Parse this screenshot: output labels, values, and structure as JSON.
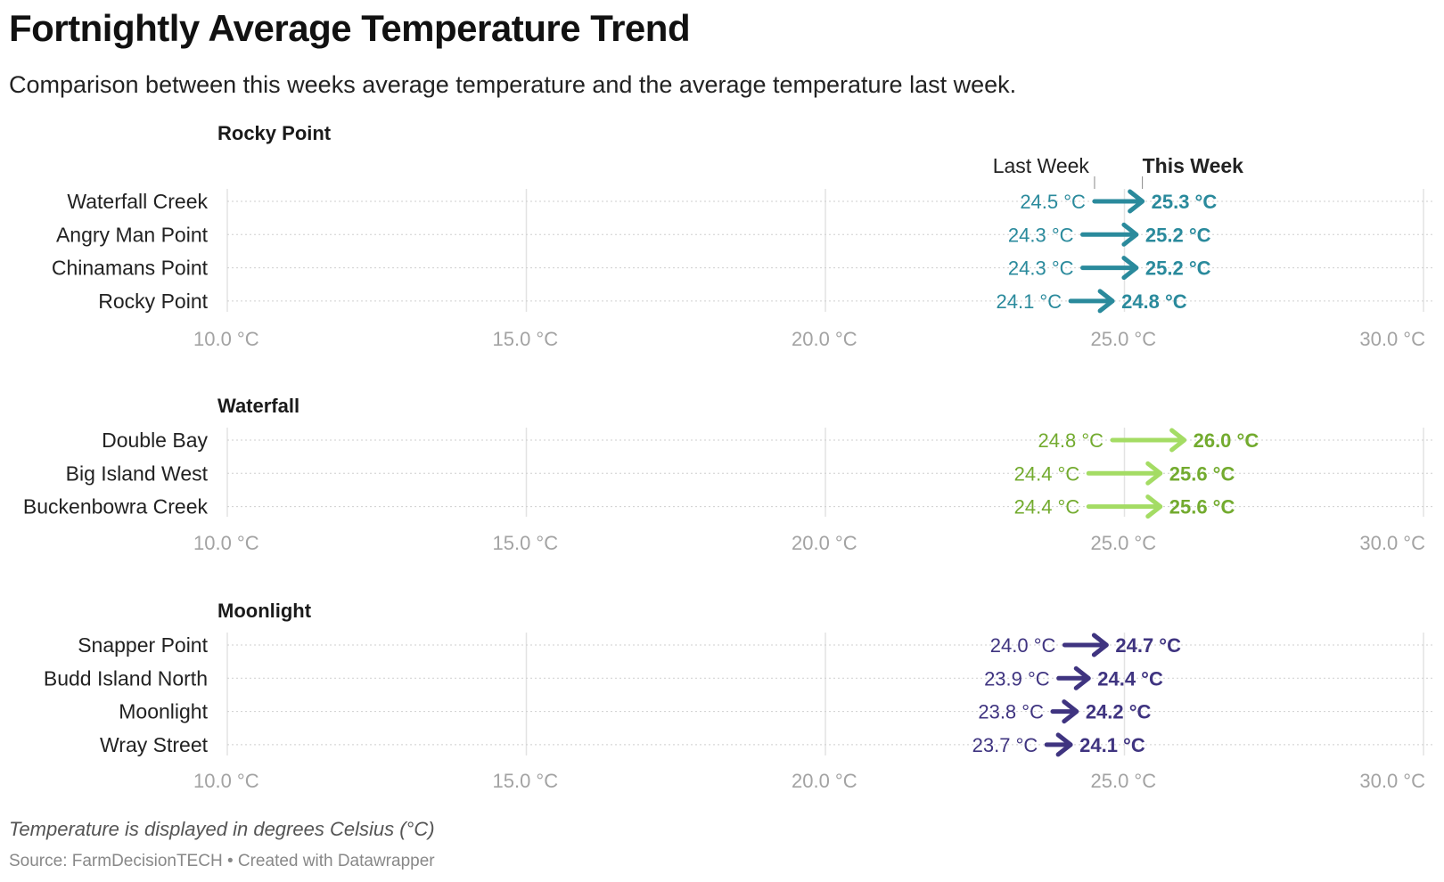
{
  "title": "Fortnightly Average Temperature Trend",
  "subtitle": "Comparison between this weeks average temperature and the average temperature last week.",
  "notes": "Temperature is displayed in degrees Celsius (°C)",
  "source": "Source: FarmDecisionTECH • Created with Datawrapper",
  "chart_data": {
    "type": "arrow",
    "unit": " °C",
    "xlim": [
      10,
      30
    ],
    "ticks": [
      10,
      15,
      20,
      25,
      30
    ],
    "legend": {
      "from": "Last Week",
      "to": "This Week"
    },
    "groups": [
      {
        "name": "Rocky Point",
        "color": "#2a8a9c",
        "rows": [
          {
            "label": "Waterfall Creek",
            "last_week": 24.5,
            "this_week": 25.3
          },
          {
            "label": "Angry Man Point",
            "last_week": 24.3,
            "this_week": 25.2
          },
          {
            "label": "Chinamans Point",
            "last_week": 24.3,
            "this_week": 25.2
          },
          {
            "label": "Rocky Point",
            "last_week": 24.1,
            "this_week": 24.8
          }
        ]
      },
      {
        "name": "Waterfall",
        "color": "#a4dc64",
        "text_color": "#73ab2f",
        "rows": [
          {
            "label": "Double Bay",
            "last_week": 24.8,
            "this_week": 26.0
          },
          {
            "label": "Big Island West",
            "last_week": 24.4,
            "this_week": 25.6
          },
          {
            "label": "Buckenbowra Creek",
            "last_week": 24.4,
            "this_week": 25.6
          }
        ]
      },
      {
        "name": "Moonlight",
        "color": "#3f3480",
        "rows": [
          {
            "label": "Snapper Point",
            "last_week": 24.0,
            "this_week": 24.7
          },
          {
            "label": "Budd Island North",
            "last_week": 23.9,
            "this_week": 24.4
          },
          {
            "label": "Moonlight",
            "last_week": 23.8,
            "this_week": 24.2
          },
          {
            "label": "Wray Street",
            "last_week": 23.7,
            "this_week": 24.1
          }
        ]
      }
    ]
  }
}
